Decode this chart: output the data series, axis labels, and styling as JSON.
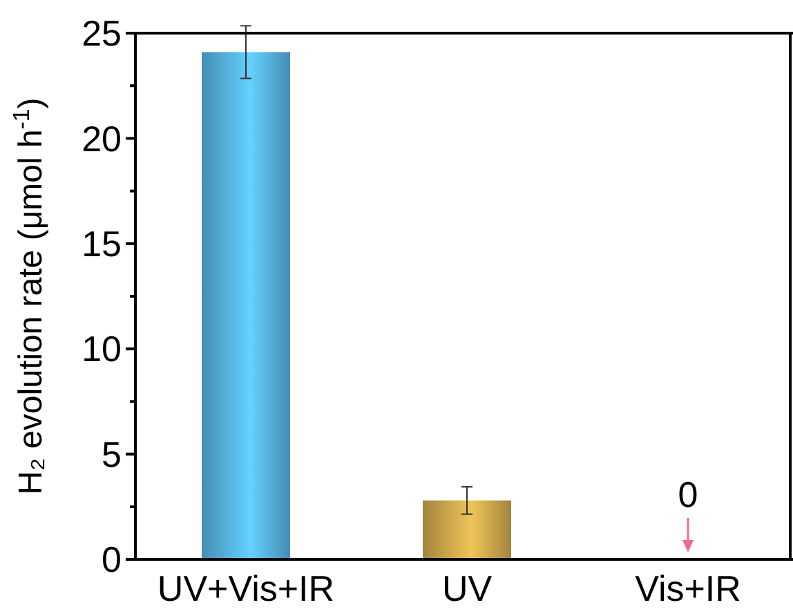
{
  "chart_data": {
    "type": "bar",
    "ylabel": "H₂ evolution rate (μmol h$^{-1}$)",
    "categories": [
      "UV+Vis+IR",
      "UV",
      "Vis+IR"
    ],
    "values": [
      24.1,
      2.8,
      0
    ],
    "errors": [
      1.25,
      0.65,
      null
    ],
    "colors": [
      "#5bbcf0",
      "#d8b050",
      "#f06aa0"
    ],
    "value_labels": [
      null,
      null,
      "0"
    ],
    "ylim": [
      0,
      25
    ],
    "yticks": [
      0,
      {
        "value": 2.5,
        "label": null
      },
      5,
      {
        "value": 7.5,
        "label": null
      },
      10,
      {
        "value": 12.5,
        "label": null
      },
      15,
      {
        "value": 17.5,
        "label": null
      },
      20,
      {
        "value": 22.5,
        "label": null
      },
      25
    ],
    "grid": false
  }
}
